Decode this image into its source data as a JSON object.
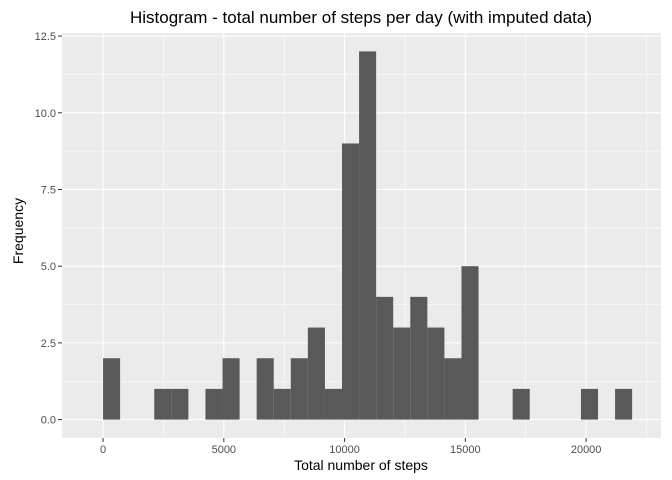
{
  "chart_data": {
    "type": "bar",
    "title": "Histogram - total number of steps per day (with imputed data)",
    "xlabel": "Total number of steps",
    "ylabel": "Frequency",
    "xlim": [
      -1700,
      23100
    ],
    "ylim": [
      -0.6,
      12.6
    ],
    "x_ticks": [
      0,
      5000,
      10000,
      15000,
      20000
    ],
    "x_tick_labels": [
      "0",
      "5000",
      "10000",
      "15000",
      "20000"
    ],
    "y_ticks": [
      0,
      2.5,
      5,
      7.5,
      10,
      12.5
    ],
    "y_tick_labels": [
      "0.0",
      "2.5",
      "5.0",
      "7.5",
      "10.0",
      "12.5"
    ],
    "bin_width": 706.6,
    "bins": [
      {
        "x": 353,
        "count": 2
      },
      {
        "x": 1060,
        "count": 0
      },
      {
        "x": 1766,
        "count": 0
      },
      {
        "x": 2473,
        "count": 1
      },
      {
        "x": 3180,
        "count": 1
      },
      {
        "x": 3886,
        "count": 0
      },
      {
        "x": 4593,
        "count": 1
      },
      {
        "x": 5300,
        "count": 2
      },
      {
        "x": 6006,
        "count": 0
      },
      {
        "x": 6713,
        "count": 2
      },
      {
        "x": 7420,
        "count": 1
      },
      {
        "x": 8126,
        "count": 2
      },
      {
        "x": 8833,
        "count": 3
      },
      {
        "x": 9539,
        "count": 1
      },
      {
        "x": 10246,
        "count": 9
      },
      {
        "x": 10953,
        "count": 12
      },
      {
        "x": 11659,
        "count": 4
      },
      {
        "x": 12366,
        "count": 3
      },
      {
        "x": 13073,
        "count": 4
      },
      {
        "x": 13779,
        "count": 3
      },
      {
        "x": 14486,
        "count": 2
      },
      {
        "x": 15193,
        "count": 5
      },
      {
        "x": 15899,
        "count": 0
      },
      {
        "x": 16606,
        "count": 0
      },
      {
        "x": 17312,
        "count": 1
      },
      {
        "x": 18019,
        "count": 0
      },
      {
        "x": 18726,
        "count": 0
      },
      {
        "x": 19432,
        "count": 0
      },
      {
        "x": 20139,
        "count": 1
      },
      {
        "x": 20846,
        "count": 0
      },
      {
        "x": 21552,
        "count": 1
      }
    ],
    "grid": true,
    "legend": "none",
    "colors": {
      "panel": "#ebebeb",
      "grid_major": "#ffffff",
      "bar": "#595959",
      "tick": "#333333",
      "tick_text": "#4d4d4d"
    }
  }
}
